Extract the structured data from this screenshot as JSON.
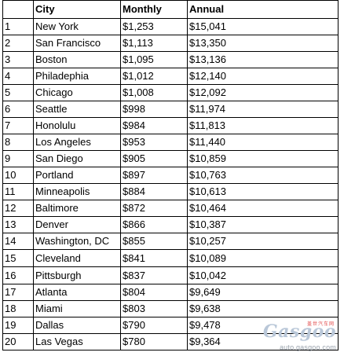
{
  "table": {
    "headers": [
      "",
      "City",
      "Monthly",
      "Annual"
    ],
    "rows": [
      [
        "1",
        "New York",
        "$1,253",
        "$15,041"
      ],
      [
        "2",
        "San Francisco",
        "$1,113",
        "$13,350"
      ],
      [
        "3",
        "Boston",
        "$1,095",
        "$13,136"
      ],
      [
        "4",
        "Philadephia",
        "$1,012",
        "$12,140"
      ],
      [
        "5",
        "Chicago",
        "$1,008",
        "$12,092"
      ],
      [
        "6",
        "Seattle",
        "$998",
        "$11,974"
      ],
      [
        "7",
        "Honolulu",
        "$984",
        "$11,813"
      ],
      [
        "8",
        "Los Angeles",
        "$953",
        "$11,440"
      ],
      [
        "9",
        "San Diego",
        "$905",
        "$10,859"
      ],
      [
        "10",
        "Portland",
        "$897",
        "$10,763"
      ],
      [
        "11",
        "Minneapolis",
        "$884",
        "$10,613"
      ],
      [
        "12",
        "Baltimore",
        "$872",
        "$10,464"
      ],
      [
        "13",
        "Denver",
        "$866",
        "$10,387"
      ],
      [
        "14",
        "Washington, DC",
        "$855",
        "$10,257"
      ],
      [
        "15",
        "Cleveland",
        "$841",
        "$10,089"
      ],
      [
        "16",
        "Pittsburgh",
        "$837",
        "$10,042"
      ],
      [
        "17",
        "Atlanta",
        "$804",
        "$9,649"
      ],
      [
        "18",
        "Miami",
        "$803",
        "$9,638"
      ],
      [
        "19",
        "Dallas",
        "$790",
        "$9,478"
      ],
      [
        "20",
        "Las Vegas",
        "$780",
        "$9,364"
      ]
    ]
  },
  "watermark": {
    "cn_text": "盖世汽车网",
    "logo_text": "Gasgoo",
    "url_text": "auto.gasgoo.com"
  }
}
